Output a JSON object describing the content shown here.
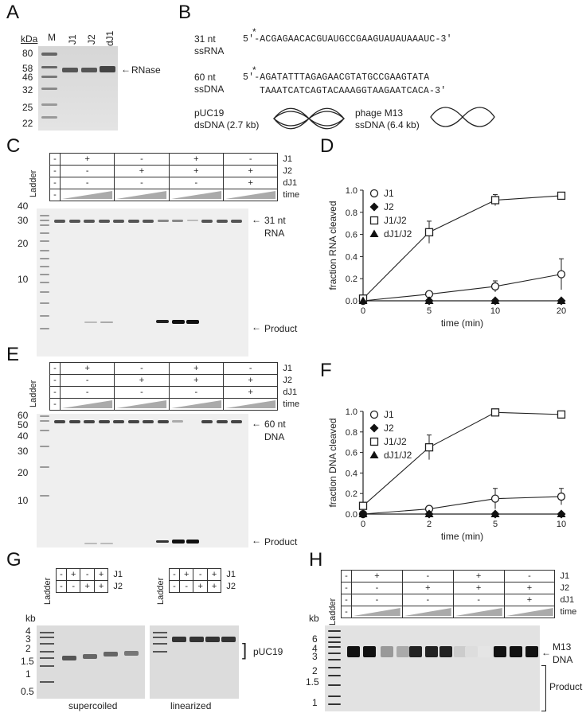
{
  "panels": {
    "A": "A",
    "B": "B",
    "C": "C",
    "D": "D",
    "E": "E",
    "F": "F",
    "G": "G",
    "H": "H"
  },
  "panelA": {
    "kda_label": "kDa",
    "lanes": [
      "M",
      "J1",
      "J2",
      "dJ1"
    ],
    "markers": [
      "80",
      "58",
      "46",
      "32",
      "25",
      "22"
    ],
    "band_label": "RNase"
  },
  "panelB": {
    "ssrna_label_1": "31 nt",
    "ssrna_label_2": "ssRNA",
    "ssrna_seq": "5′-ACGAGAACACGUAUGCCGAAGUAUAUAAAUC-3′",
    "ssdna_label_1": "60 nt",
    "ssdna_label_2": "ssDNA",
    "ssdna_seq_1": "5′-AGATATTTAGAGAACGTATGCCGAAGTATA",
    "ssdna_seq_2": "TAAATCATCAGTACAAAGGTAAGAATCACA-3′",
    "star": "*",
    "puc_label_1": "pUC19",
    "puc_label_2": "dsDNA (2.7 kb)",
    "m13_label_1": "phage M13",
    "m13_label_2": "ssDNA (6.4 kb)"
  },
  "panelC": {
    "ladder": "Ladder",
    "rows": [
      {
        "name": "J1",
        "cells": [
          "-",
          "+",
          "-",
          "+",
          "-"
        ]
      },
      {
        "name": "J2",
        "cells": [
          "-",
          "-",
          "+",
          "+",
          "+"
        ]
      },
      {
        "name": "dJ1",
        "cells": [
          "-",
          "-",
          "-",
          "-",
          "+"
        ]
      },
      {
        "name": "time",
        "cells": [
          "-",
          "",
          "",
          "",
          ""
        ]
      }
    ],
    "markers": [
      "40",
      "30",
      "20",
      "10"
    ],
    "substrate_1": "31 nt",
    "substrate_2": "RNA",
    "product": "Product"
  },
  "panelE": {
    "ladder": "Ladder",
    "rows": [
      {
        "name": "J1",
        "cells": [
          "-",
          "+",
          "-",
          "+",
          "-"
        ]
      },
      {
        "name": "J2",
        "cells": [
          "-",
          "-",
          "+",
          "+",
          "+"
        ]
      },
      {
        "name": "dJ1",
        "cells": [
          "-",
          "-",
          "-",
          "-",
          "+"
        ]
      },
      {
        "name": "time",
        "cells": [
          "-",
          "",
          "",
          "",
          ""
        ]
      }
    ],
    "markers": [
      "60",
      "50",
      "40",
      "30",
      "20",
      "10"
    ],
    "substrate_1": "60 nt",
    "substrate_2": "DNA",
    "product": "Product"
  },
  "panelG": {
    "ladder": "Ladder",
    "kb": "kb",
    "rows": [
      {
        "name": "J1",
        "cells": [
          "-",
          "+",
          "-",
          "+"
        ]
      },
      {
        "name": "J2",
        "cells": [
          "-",
          "-",
          "+",
          "+"
        ]
      }
    ],
    "markers": [
      "4",
      "3",
      "2",
      "1.5",
      "1",
      "0.5"
    ],
    "puc": "pUC19",
    "sc": "supercoiled",
    "lin": "linearized"
  },
  "panelH": {
    "ladder": "Ladder",
    "kb": "kb",
    "rows": [
      {
        "name": "J1",
        "cells": [
          "-",
          "+",
          "-",
          "+",
          "-"
        ]
      },
      {
        "name": "J2",
        "cells": [
          "-",
          "-",
          "+",
          "+",
          "+"
        ]
      },
      {
        "name": "dJ1",
        "cells": [
          "-",
          "-",
          "-",
          "-",
          "+"
        ]
      },
      {
        "name": "time",
        "cells": [
          "-",
          "",
          "",
          "",
          ""
        ]
      }
    ],
    "markers": [
      "6",
      "4",
      "3",
      "2",
      "1.5",
      "1"
    ],
    "m13_1": "M13",
    "m13_2": "DNA",
    "product": "Product"
  },
  "chart_data": [
    {
      "type": "line",
      "panel": "D",
      "ylabel": "fraction RNA cleaved",
      "xlabel": "time (min)",
      "x_ticks": [
        "0",
        "5",
        "10",
        "20"
      ],
      "y_ticks": [
        "0.0",
        "0.2",
        "0.4",
        "0.6",
        "0.8",
        "1.0"
      ],
      "ylim": [
        0,
        1.0
      ],
      "series": [
        {
          "name": "J1",
          "marker": "circle-open",
          "values": [
            0.0,
            0.06,
            0.13,
            0.24
          ],
          "err": [
            0.01,
            0.02,
            0.05,
            0.14
          ]
        },
        {
          "name": "J2",
          "marker": "diamond-filled",
          "values": [
            0.0,
            0.0,
            0.0,
            0.0
          ],
          "err": [
            0,
            0,
            0,
            0
          ]
        },
        {
          "name": "J1/J2",
          "marker": "square-open",
          "values": [
            0.02,
            0.62,
            0.91,
            0.95
          ],
          "err": [
            0.01,
            0.1,
            0.05,
            0.01
          ]
        },
        {
          "name": "dJ1/J2",
          "marker": "triangle-filled",
          "values": [
            0.0,
            0.0,
            0.0,
            0.0
          ],
          "err": [
            0,
            0,
            0,
            0
          ]
        }
      ]
    },
    {
      "type": "line",
      "panel": "F",
      "ylabel": "fraction DNA cleaved",
      "xlabel": "time (min)",
      "x_ticks": [
        "0",
        "2",
        "5",
        "10"
      ],
      "y_ticks": [
        "0.0",
        "0.2",
        "0.4",
        "0.6",
        "0.8",
        "1.0"
      ],
      "ylim": [
        0,
        1.0
      ],
      "series": [
        {
          "name": "J1",
          "marker": "circle-open",
          "values": [
            0.0,
            0.05,
            0.15,
            0.17
          ],
          "err": [
            0.01,
            0.02,
            0.1,
            0.08
          ]
        },
        {
          "name": "J2",
          "marker": "diamond-filled",
          "values": [
            0.0,
            0.0,
            0.0,
            0.0
          ],
          "err": [
            0,
            0,
            0,
            0
          ]
        },
        {
          "name": "J1/J2",
          "marker": "square-open",
          "values": [
            0.08,
            0.65,
            0.99,
            0.97
          ],
          "err": [
            0.02,
            0.12,
            0.01,
            0.01
          ]
        },
        {
          "name": "dJ1/J2",
          "marker": "triangle-filled",
          "values": [
            0.0,
            0.0,
            0.0,
            0.0
          ],
          "err": [
            0,
            0,
            0,
            0
          ]
        }
      ]
    }
  ]
}
